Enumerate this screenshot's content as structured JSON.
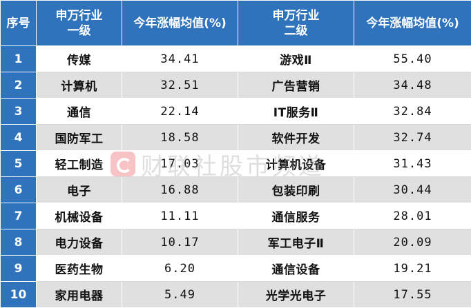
{
  "header": {
    "col_index": "序号",
    "col_industry1_line1": "申万行业",
    "col_industry1_line2": "一级",
    "col_value1": "今年涨幅均值(%)",
    "col_industry2_line1": "申万行业",
    "col_industry2_line2": "二级",
    "col_value2": "今年涨幅均值(%)"
  },
  "rows": [
    {
      "idx": "1",
      "ind1": "传媒",
      "val1": "34.41",
      "ind2": "游戏Ⅱ",
      "val2": "55.40"
    },
    {
      "idx": "2",
      "ind1": "计算机",
      "val1": "32.51",
      "ind2": "广告营销",
      "val2": "34.48"
    },
    {
      "idx": "3",
      "ind1": "通信",
      "val1": "22.14",
      "ind2": "IT服务Ⅱ",
      "val2": "32.84"
    },
    {
      "idx": "4",
      "ind1": "国防军工",
      "val1": "18.58",
      "ind2": "软件开发",
      "val2": "32.74"
    },
    {
      "idx": "5",
      "ind1": "轻工制造",
      "val1": "17.03",
      "ind2": "计算机设备",
      "val2": "31.43"
    },
    {
      "idx": "6",
      "ind1": "电子",
      "val1": "16.88",
      "ind2": "包装印刷",
      "val2": "30.44"
    },
    {
      "idx": "7",
      "ind1": "机械设备",
      "val1": "11.11",
      "ind2": "通信服务",
      "val2": "28.01"
    },
    {
      "idx": "8",
      "ind1": "电力设备",
      "val1": "10.17",
      "ind2": "军工电子Ⅱ",
      "val2": "20.09"
    },
    {
      "idx": "9",
      "ind1": "医药生物",
      "val1": "6.20",
      "ind2": "通信设备",
      "val2": "19.21"
    },
    {
      "idx": "10",
      "ind1": "家用电器",
      "val1": "5.49",
      "ind2": "光学光电子",
      "val2": "17.55"
    }
  ],
  "watermark": {
    "text": "财联社股市频道",
    "icon": "cls-logo-icon"
  },
  "colors": {
    "header_bg": "#2e73bc",
    "header_text": "#ffffff",
    "row_alt_bg": "#e0e0e0",
    "row_bg": "#ffffff",
    "watermark_red": "#e8474a"
  }
}
